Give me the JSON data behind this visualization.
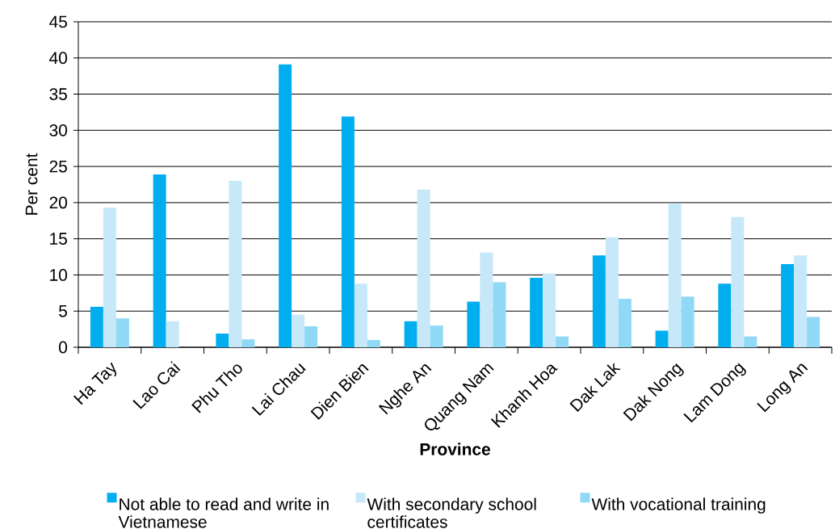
{
  "chart_data": {
    "type": "bar",
    "xlabel": "Province",
    "ylabel": "Per cent",
    "categories": [
      "Ha Tay",
      "Lao Cai",
      "Phu Tho",
      "Lai Chau",
      "Dien Bien",
      "Nghe An",
      "Quang Nam",
      "Khanh Hoa",
      "Dak Lak",
      "Dak Nong",
      "Lam Dong",
      "Long An"
    ],
    "series": [
      {
        "name": "Not able to read and write in Vietnamese",
        "color": "#00aeef",
        "values": [
          5.6,
          23.9,
          1.9,
          39.1,
          31.9,
          3.6,
          6.3,
          9.6,
          12.7,
          2.3,
          8.8,
          11.5
        ]
      },
      {
        "name": "With secondary school certificates",
        "color": "#c6e8f8",
        "values": [
          19.3,
          3.6,
          23.0,
          4.5,
          8.8,
          21.8,
          13.1,
          10.2,
          15.2,
          19.9,
          18.0,
          12.7
        ]
      },
      {
        "name": "With vocational training",
        "color": "#90d9f6",
        "values": [
          4.0,
          null,
          1.1,
          2.9,
          1.0,
          3.0,
          9.0,
          1.5,
          6.7,
          7.0,
          1.5,
          4.2
        ]
      }
    ],
    "ylim": [
      0,
      45
    ],
    "yticks": [
      0,
      5,
      10,
      15,
      20,
      25,
      30,
      35,
      40,
      45
    ],
    "grid": "y",
    "legend": "bottom"
  }
}
